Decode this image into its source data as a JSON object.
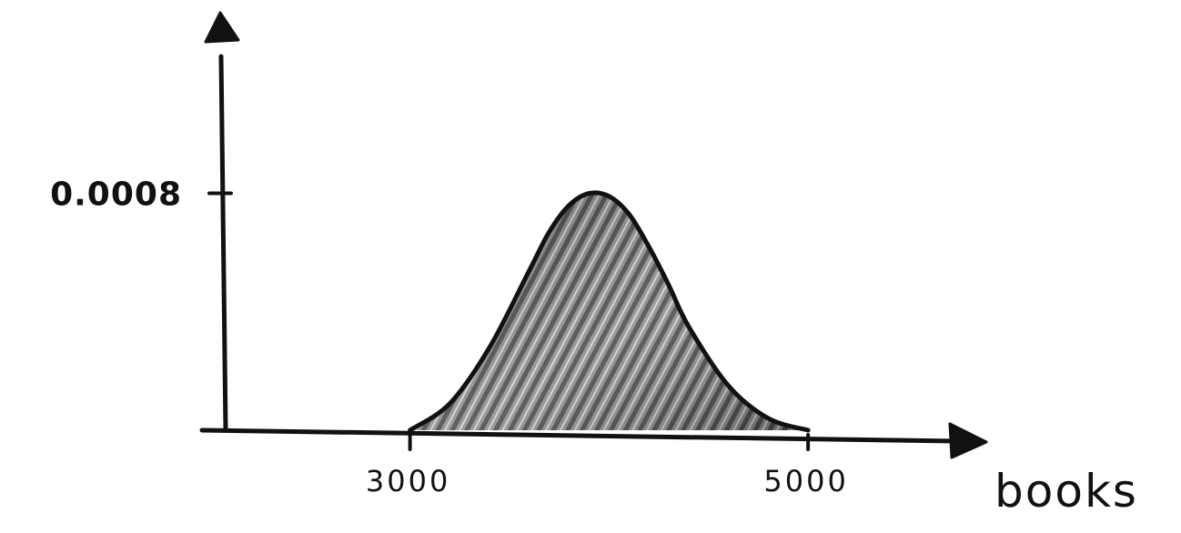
{
  "chart_data": {
    "type": "area",
    "title": "",
    "xlabel": "books",
    "ylabel": "",
    "x_ticks": [
      {
        "value": 3000,
        "label": "3000"
      },
      {
        "value": 5000,
        "label": "5000"
      }
    ],
    "y_ticks": [
      {
        "value": 0.0008,
        "label": "0.0008"
      }
    ],
    "xlim": [
      2060,
      5900
    ],
    "ylim": [
      0,
      0.00133
    ],
    "series": [
      {
        "x": [
          3000,
          3200,
          3400,
          3600,
          3700,
          3800,
          3900,
          4000,
          4100,
          4200,
          4300,
          4400,
          4600,
          4800,
          5000
        ],
        "y": [
          0,
          9e-05,
          0.00028,
          0.00054,
          0.00067,
          0.00076,
          0.0008,
          0.00079,
          0.00073,
          0.00062,
          0.00049,
          0.00035,
          0.00015,
          4e-05,
          0
        ]
      }
    ],
    "grid": false,
    "legend": "none",
    "colors": {
      "ink": "#111111",
      "fill": "#8a8a8a",
      "hatch": "#444444",
      "highlight": "#cfcfcf"
    }
  }
}
